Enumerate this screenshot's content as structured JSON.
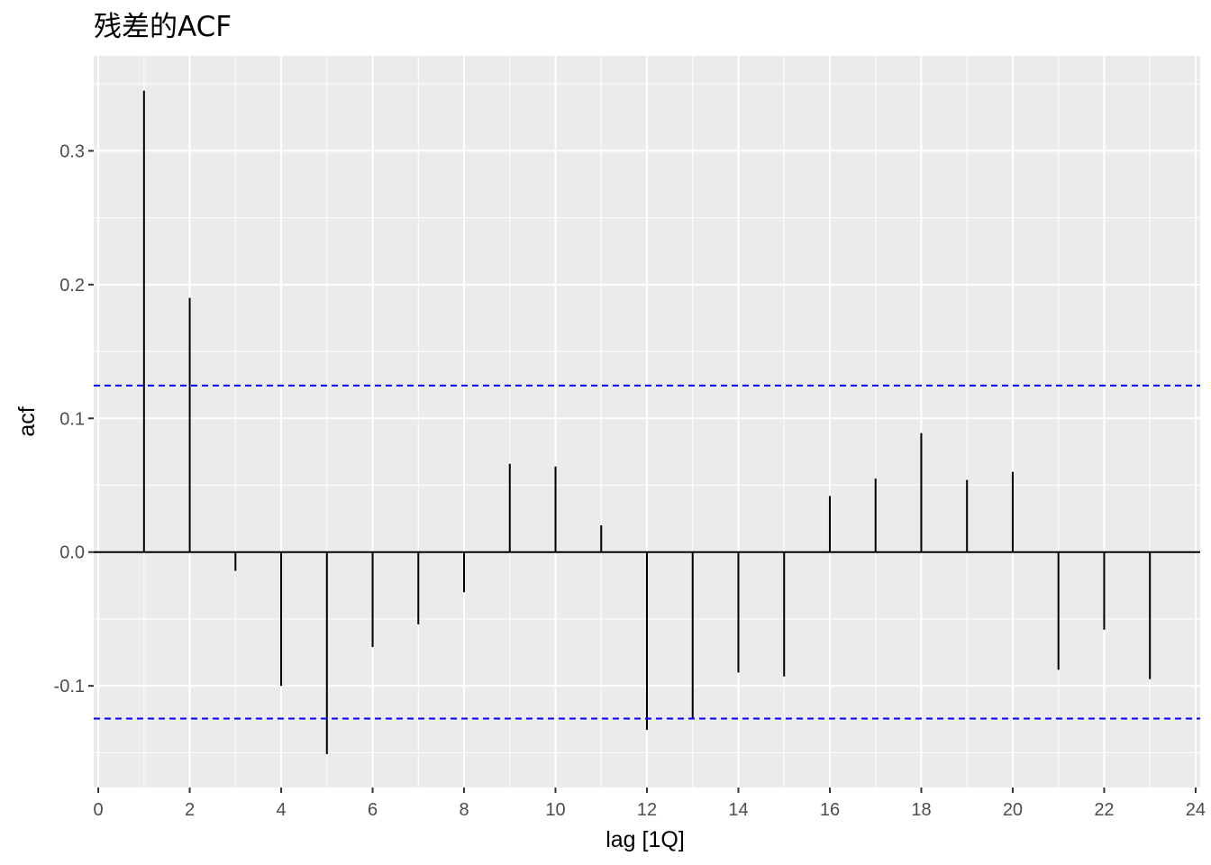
{
  "chart_data": {
    "type": "bar",
    "title": "残差的ACF",
    "xlabel": "lag [1Q]",
    "ylabel": "acf",
    "x": [
      1,
      2,
      3,
      4,
      5,
      6,
      7,
      8,
      9,
      10,
      11,
      12,
      13,
      14,
      15,
      16,
      17,
      18,
      19,
      20,
      21,
      22,
      23
    ],
    "values": [
      0.345,
      0.19,
      -0.014,
      -0.1,
      -0.151,
      -0.071,
      -0.054,
      -0.03,
      0.066,
      0.064,
      0.02,
      -0.133,
      -0.125,
      -0.09,
      -0.093,
      0.042,
      0.055,
      0.089,
      0.054,
      0.06,
      -0.088,
      -0.058,
      -0.095
    ],
    "confidence_bounds": [
      0.1245,
      -0.1245
    ],
    "xlim": [
      -0.1,
      24.1
    ],
    "ylim": [
      -0.176,
      0.371
    ],
    "x_ticks": [
      0,
      2,
      4,
      6,
      8,
      10,
      12,
      14,
      16,
      18,
      20,
      22,
      24
    ],
    "y_ticks": [
      -0.1,
      0.0,
      0.1,
      0.2,
      0.3
    ],
    "x_tick_labels": [
      "0",
      "2",
      "4",
      "6",
      "8",
      "10",
      "12",
      "14",
      "16",
      "18",
      "20",
      "22",
      "24"
    ],
    "y_tick_labels": [
      "-0.1",
      "0.0",
      "0.1",
      "0.2",
      "0.3"
    ],
    "grid": true,
    "colors": {
      "panel_background": "#ebebeb",
      "grid": "#ffffff",
      "bars": "#000000",
      "confidence_line": "#0000ff"
    }
  }
}
